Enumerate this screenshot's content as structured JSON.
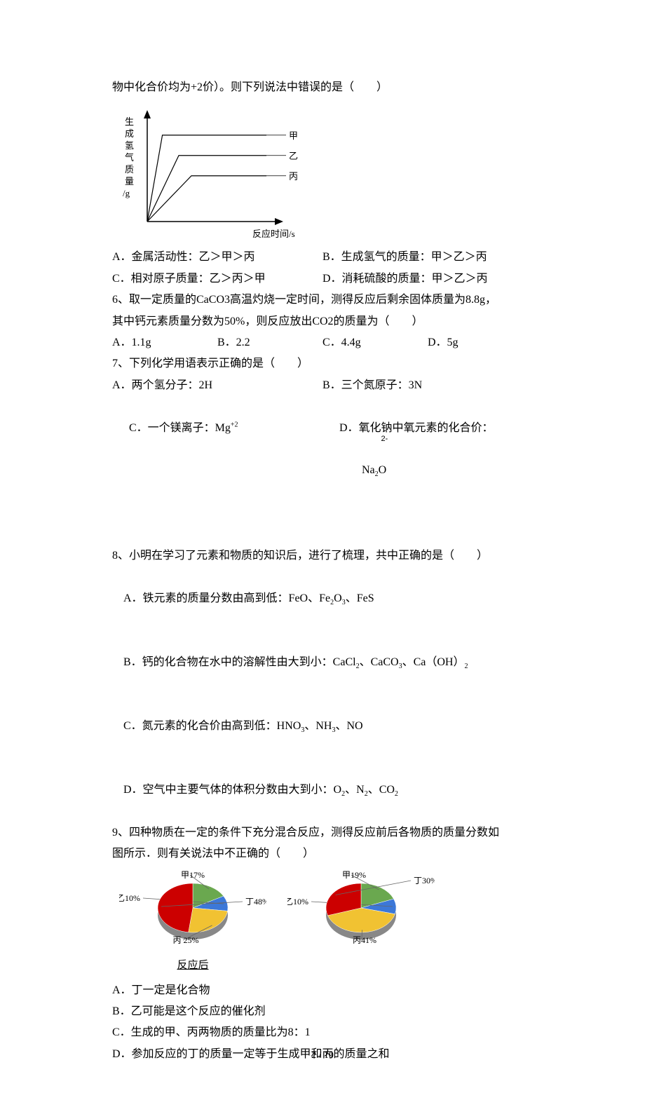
{
  "intro_tail": "物中化合价均为+2价）。则下列说法中错误的是（　　）",
  "h2_chart": {
    "type": "line",
    "y_axis_label": "生\n成\n氢\n气\n质\n量",
    "y_unit": "/g",
    "x_axis_label": "反应时间/s",
    "series_labels": [
      "甲",
      "乙",
      "丙"
    ],
    "series_colors": [
      "#000000",
      "#000000",
      "#000000"
    ],
    "line_widths": [
      1.2,
      1.2,
      1.2
    ],
    "end_y": [
      0.85,
      0.65,
      0.45
    ],
    "rise_x": [
      0.12,
      0.25,
      0.35
    ],
    "plateau_x": 0.55,
    "xlim": [
      0,
      1
    ],
    "ylim": [
      0,
      1
    ],
    "axis_color": "#000000",
    "background_color": "#ffffff",
    "label_fontsize": 13
  },
  "q5_opts": {
    "A": "A．金属活动性：乙＞甲＞丙",
    "B": "B．生成氢气的质量：甲＞乙＞丙",
    "C": "C．相对原子质量：乙＞丙＞甲",
    "D": "D．消耗硫酸的质量：甲＞乙＞丙"
  },
  "q6": {
    "stem_l1": "6、取一定质量的CaCO3高温灼烧一定时间，测得反应后剩余固体质量为8.8g，",
    "stem_l2": "其中钙元素质量分数为50%，则反应放出CO2的质量为（　　）",
    "A": "A．1.1g",
    "B": "B．2.2",
    "C": "C．4.4g",
    "D": "D．5g"
  },
  "q7": {
    "stem": "7、下列化学用语表示正确的是（　　）",
    "A": "A．两个氢分子：2H",
    "B": "B．三个氮原子：3N",
    "C": "C．一个镁离子：Mg",
    "C_sup": "+2",
    "D_pre": "D．氧化钠中氧元素的化合价：",
    "D_formula": "Na₂O",
    "D_charge": "2-",
    "D_formula_main": "Na",
    "D_sub": "2",
    "D_O": "O"
  },
  "q8": {
    "stem": "8、小明在学习了元素和物质的知识后，进行了梳理，共中正确的是（　　）",
    "A_pre": "A．铁元素的质量分数由高到低：FeO、Fe",
    "A_rest": "、FeS",
    "B_pre": "B．钙的化合物在水中的溶解性由大到小：CaCl",
    "B_mid": "、CaCO",
    "B_end": "、Ca（OH）",
    "C_pre": "C．氮元素的化合价由高到低：HNO",
    "C_mid": "、NH",
    "C_end": "、NO",
    "D_pre": "D．空气中主要气体的体积分数由大到小：O",
    "D_mid": "、N",
    "D_end": "、CO"
  },
  "q9": {
    "stem_l1": "9、四种物质在一定的条件下充分混合反应，测得反应前后各物质的质量分数如",
    "stem_l2": "图所示．则有关说法中不正确的（　　）"
  },
  "pies": {
    "type": "pie",
    "before": {
      "labels": [
        "甲17%",
        "乙10%",
        "丙 25%",
        "丁48%"
      ],
      "values": [
        17,
        10,
        25,
        48
      ],
      "colors": [
        "#6aa84f",
        "#3c78d8",
        "#f1c232",
        "#cc0000"
      ],
      "line_color": "#666666",
      "label_fontsize": 12,
      "caption": "反应后"
    },
    "after": {
      "labels": [
        "甲19%",
        "乙10%",
        "丙41%",
        "丁30%"
      ],
      "values": [
        19,
        10,
        41,
        30
      ],
      "colors": [
        "#6aa84f",
        "#3c78d8",
        "#f1c232",
        "#cc0000"
      ],
      "line_color": "#666666",
      "label_fontsize": 12
    }
  },
  "q9_opts": {
    "A": "A．丁一定是化合物",
    "B": "B．乙可能是这个反应的催化剂",
    "C": "C．生成的甲、丙两物质的质量比为8：1",
    "D": "D．参加反应的丁的质量一定等于生成甲和丙的质量之和"
  },
  "pagenum": "2 / 10"
}
